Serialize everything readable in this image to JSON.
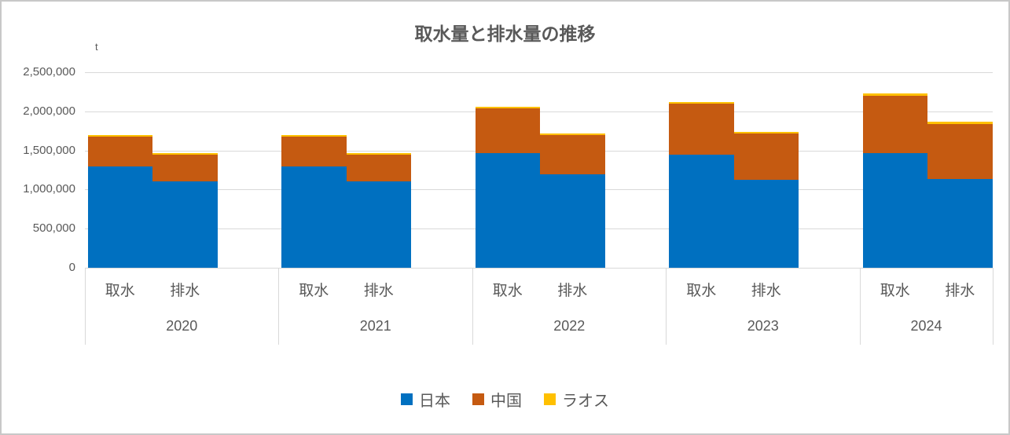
{
  "chart_data": {
    "type": "bar",
    "stacked": true,
    "title": "取水量と排水量の推移",
    "unit_label": "t",
    "ylim": [
      0,
      2500000
    ],
    "ytick_interval": 500000,
    "ytick_labels": [
      "0",
      "500,000",
      "1,000,000",
      "1,500,000",
      "2,000,000",
      "2,500,000"
    ],
    "grid": true,
    "legend_position": "bottom",
    "series": [
      {
        "name": "日本",
        "color": "#0070C0"
      },
      {
        "name": "中国",
        "color": "#C55A11"
      },
      {
        "name": "ラオス",
        "color": "#FFC000"
      }
    ],
    "groups": [
      {
        "year": "2020",
        "bars": [
          {
            "label": "取水",
            "values": [
              1300000,
              380000,
              20000
            ]
          },
          {
            "label": "排水",
            "values": [
              1100000,
              350000,
              20000
            ]
          }
        ]
      },
      {
        "year": "2021",
        "bars": [
          {
            "label": "取水",
            "values": [
              1300000,
              380000,
              20000
            ]
          },
          {
            "label": "排水",
            "values": [
              1100000,
              350000,
              20000
            ]
          }
        ]
      },
      {
        "year": "2022",
        "bars": [
          {
            "label": "取水",
            "values": [
              1470000,
              570000,
              20000
            ]
          },
          {
            "label": "排水",
            "values": [
              1190000,
              510000,
              20000
            ]
          }
        ]
      },
      {
        "year": "2023",
        "bars": [
          {
            "label": "取水",
            "values": [
              1450000,
              650000,
              20000
            ]
          },
          {
            "label": "排水",
            "values": [
              1120000,
              600000,
              20000
            ]
          }
        ]
      },
      {
        "year": "2024",
        "bars": [
          {
            "label": "取水",
            "values": [
              1470000,
              730000,
              30000
            ]
          },
          {
            "label": "排水",
            "values": [
              1130000,
              710000,
              30000
            ]
          }
        ]
      }
    ]
  },
  "colors": {
    "text": "#595959",
    "gridline": "#D9D9D9",
    "border": "#C8C8C8",
    "background": "#FFFFFF"
  }
}
